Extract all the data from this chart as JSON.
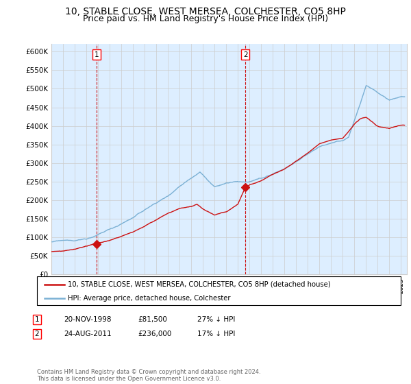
{
  "title": "10, STABLE CLOSE, WEST MERSEA, COLCHESTER, CO5 8HP",
  "subtitle": "Price paid vs. HM Land Registry's House Price Index (HPI)",
  "title_fontsize": 10,
  "subtitle_fontsize": 9,
  "ylabel_ticks": [
    "£0",
    "£50K",
    "£100K",
    "£150K",
    "£200K",
    "£250K",
    "£300K",
    "£350K",
    "£400K",
    "£450K",
    "£500K",
    "£550K",
    "£600K"
  ],
  "ytick_values": [
    0,
    50000,
    100000,
    150000,
    200000,
    250000,
    300000,
    350000,
    400000,
    450000,
    500000,
    550000,
    600000
  ],
  "ylim": [
    0,
    620000
  ],
  "hpi_color": "#7ab0d4",
  "hpi_fill_color": "#ddeeff",
  "price_color": "#cc1111",
  "vline_color": "#cc1111",
  "grid_color": "#cccccc",
  "background_color": "#ffffff",
  "sale1_x": 1998.89,
  "sale1_y": 81500,
  "sale2_x": 2011.65,
  "sale2_y": 236000,
  "legend_entries": [
    "10, STABLE CLOSE, WEST MERSEA, COLCHESTER, CO5 8HP (detached house)",
    "HPI: Average price, detached house, Colchester"
  ],
  "table_rows": [
    [
      "1",
      "20-NOV-1998",
      "£81,500",
      "27% ↓ HPI"
    ],
    [
      "2",
      "24-AUG-2011",
      "£236,000",
      "17% ↓ HPI"
    ]
  ],
  "footnote": "Contains HM Land Registry data © Crown copyright and database right 2024.\nThis data is licensed under the Open Government Licence v3.0.",
  "xmin": 1995,
  "xmax": 2025.5
}
